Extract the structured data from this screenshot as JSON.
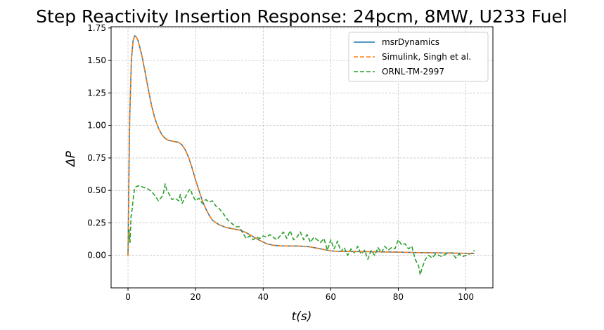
{
  "chart_data": {
    "type": "line",
    "title": "Step Reactivity Insertion Response: 24pcm, 8MW, U233 Fuel",
    "xlabel": "t(s)",
    "ylabel": "ΔP",
    "xlim": [
      -5,
      108
    ],
    "ylim": [
      -0.25,
      1.76
    ],
    "x_ticks": [
      0,
      20,
      40,
      60,
      80,
      100
    ],
    "y_ticks": [
      0.0,
      0.25,
      0.5,
      0.75,
      1.0,
      1.25,
      1.5,
      1.75
    ],
    "x_tick_labels": [
      "0",
      "20",
      "40",
      "60",
      "80",
      "100"
    ],
    "y_tick_labels": [
      "0.00",
      "0.25",
      "0.50",
      "0.75",
      "1.00",
      "1.25",
      "1.50",
      "1.75"
    ],
    "grid": true,
    "legend_position": "top-right",
    "series": [
      {
        "name": "msrDynamics",
        "color": "#1f77b4",
        "style": "solid",
        "points": [
          [
            0,
            0.0
          ],
          [
            0.2,
            0.45
          ],
          [
            0.5,
            1.05
          ],
          [
            1,
            1.5
          ],
          [
            1.5,
            1.65
          ],
          [
            2,
            1.69
          ],
          [
            2.5,
            1.68
          ],
          [
            3,
            1.65
          ],
          [
            4,
            1.55
          ],
          [
            5,
            1.42
          ],
          [
            6,
            1.28
          ],
          [
            7,
            1.15
          ],
          [
            8,
            1.05
          ],
          [
            9,
            0.98
          ],
          [
            10,
            0.93
          ],
          [
            11,
            0.9
          ],
          [
            12,
            0.885
          ],
          [
            13,
            0.88
          ],
          [
            14,
            0.875
          ],
          [
            15,
            0.87
          ],
          [
            16,
            0.85
          ],
          [
            17,
            0.81
          ],
          [
            18,
            0.75
          ],
          [
            19,
            0.67
          ],
          [
            20,
            0.58
          ],
          [
            21,
            0.5
          ],
          [
            22,
            0.42
          ],
          [
            23,
            0.36
          ],
          [
            24,
            0.31
          ],
          [
            25,
            0.27
          ],
          [
            27,
            0.235
          ],
          [
            29,
            0.215
          ],
          [
            31,
            0.205
          ],
          [
            33,
            0.195
          ],
          [
            35,
            0.175
          ],
          [
            37,
            0.145
          ],
          [
            39,
            0.115
          ],
          [
            41,
            0.09
          ],
          [
            43,
            0.078
          ],
          [
            45,
            0.073
          ],
          [
            50,
            0.072
          ],
          [
            52,
            0.07
          ],
          [
            54,
            0.065
          ],
          [
            56,
            0.055
          ],
          [
            58,
            0.045
          ],
          [
            60,
            0.035
          ],
          [
            62,
            0.031
          ],
          [
            65,
            0.03
          ],
          [
            70,
            0.029
          ],
          [
            75,
            0.027
          ],
          [
            80,
            0.025
          ],
          [
            85,
            0.022
          ],
          [
            90,
            0.02
          ],
          [
            95,
            0.018
          ],
          [
            100,
            0.016
          ],
          [
            102.5,
            0.015
          ]
        ]
      },
      {
        "name": "Simulink, Singh et al.",
        "color": "#ff7f0e",
        "style": "dashed",
        "points": [
          [
            0,
            0.0
          ],
          [
            0.2,
            0.45
          ],
          [
            0.5,
            1.05
          ],
          [
            1,
            1.5
          ],
          [
            1.5,
            1.65
          ],
          [
            2,
            1.69
          ],
          [
            2.5,
            1.68
          ],
          [
            3,
            1.65
          ],
          [
            4,
            1.55
          ],
          [
            5,
            1.42
          ],
          [
            6,
            1.28
          ],
          [
            7,
            1.15
          ],
          [
            8,
            1.05
          ],
          [
            9,
            0.98
          ],
          [
            10,
            0.93
          ],
          [
            11,
            0.9
          ],
          [
            12,
            0.885
          ],
          [
            13,
            0.88
          ],
          [
            14,
            0.875
          ],
          [
            15,
            0.87
          ],
          [
            16,
            0.85
          ],
          [
            17,
            0.81
          ],
          [
            18,
            0.75
          ],
          [
            19,
            0.67
          ],
          [
            20,
            0.58
          ],
          [
            21,
            0.5
          ],
          [
            22,
            0.42
          ],
          [
            23,
            0.36
          ],
          [
            24,
            0.31
          ],
          [
            25,
            0.27
          ],
          [
            27,
            0.235
          ],
          [
            29,
            0.215
          ],
          [
            31,
            0.205
          ],
          [
            33,
            0.195
          ],
          [
            35,
            0.175
          ],
          [
            37,
            0.145
          ],
          [
            39,
            0.115
          ],
          [
            41,
            0.09
          ],
          [
            43,
            0.078
          ],
          [
            45,
            0.073
          ],
          [
            50,
            0.072
          ],
          [
            52,
            0.07
          ],
          [
            54,
            0.065
          ],
          [
            56,
            0.055
          ],
          [
            58,
            0.045
          ],
          [
            60,
            0.035
          ],
          [
            62,
            0.031
          ],
          [
            65,
            0.03
          ],
          [
            70,
            0.029
          ],
          [
            75,
            0.027
          ],
          [
            80,
            0.025
          ],
          [
            85,
            0.022
          ],
          [
            90,
            0.02
          ],
          [
            95,
            0.018
          ],
          [
            100,
            0.016
          ],
          [
            102.5,
            0.015
          ]
        ]
      },
      {
        "name": "ORNL-TM-2997",
        "color": "#2ca02c",
        "style": "dashed",
        "points": [
          [
            0,
            0.0
          ],
          [
            0.3,
            0.2
          ],
          [
            0.6,
            0.1
          ],
          [
            0.9,
            0.3
          ],
          [
            1.2,
            0.35
          ],
          [
            1.6,
            0.45
          ],
          [
            2,
            0.52
          ],
          [
            2.5,
            0.53
          ],
          [
            3,
            0.535
          ],
          [
            4,
            0.53
          ],
          [
            5,
            0.52
          ],
          [
            6,
            0.51
          ],
          [
            7,
            0.49
          ],
          [
            8,
            0.46
          ],
          [
            9,
            0.42
          ],
          [
            10,
            0.45
          ],
          [
            10.5,
            0.48
          ],
          [
            11,
            0.55
          ],
          [
            11.5,
            0.5
          ],
          [
            12,
            0.48
          ],
          [
            13,
            0.43
          ],
          [
            14,
            0.44
          ],
          [
            15,
            0.42
          ],
          [
            15.5,
            0.47
          ],
          [
            16,
            0.4
          ],
          [
            17,
            0.45
          ],
          [
            18,
            0.5
          ],
          [
            18.5,
            0.51
          ],
          [
            19,
            0.47
          ],
          [
            20,
            0.42
          ],
          [
            21,
            0.44
          ],
          [
            22,
            0.4
          ],
          [
            23,
            0.43
          ],
          [
            24,
            0.41
          ],
          [
            25,
            0.42
          ],
          [
            26,
            0.38
          ],
          [
            27,
            0.36
          ],
          [
            28,
            0.33
          ],
          [
            29,
            0.29
          ],
          [
            30,
            0.26
          ],
          [
            31,
            0.24
          ],
          [
            32,
            0.22
          ],
          [
            33,
            0.22
          ],
          [
            34,
            0.17
          ],
          [
            35,
            0.13
          ],
          [
            36,
            0.15
          ],
          [
            37,
            0.12
          ],
          [
            38,
            0.14
          ],
          [
            39,
            0.13
          ],
          [
            40,
            0.15
          ],
          [
            41,
            0.14
          ],
          [
            42,
            0.16
          ],
          [
            43,
            0.14
          ],
          [
            44,
            0.12
          ],
          [
            45,
            0.15
          ],
          [
            46,
            0.18
          ],
          [
            47,
            0.13
          ],
          [
            48,
            0.19
          ],
          [
            49,
            0.12
          ],
          [
            50,
            0.14
          ],
          [
            51,
            0.18
          ],
          [
            52,
            0.12
          ],
          [
            53,
            0.16
          ],
          [
            54,
            0.1
          ],
          [
            55,
            0.14
          ],
          [
            56,
            0.12
          ],
          [
            57,
            0.1
          ],
          [
            58,
            0.13
          ],
          [
            59,
            0.04
          ],
          [
            60,
            0.12
          ],
          [
            61,
            0.05
          ],
          [
            62,
            0.11
          ],
          [
            63,
            0.03
          ],
          [
            64,
            0.06
          ],
          [
            65,
            0.0
          ],
          [
            66,
            0.05
          ],
          [
            67,
            0.02
          ],
          [
            68,
            0.07
          ],
          [
            69,
            0.01
          ],
          [
            70,
            0.04
          ],
          [
            71,
            -0.03
          ],
          [
            72,
            0.04
          ],
          [
            73,
            0.0
          ],
          [
            74,
            0.06
          ],
          [
            75,
            0.02
          ],
          [
            76,
            0.07
          ],
          [
            77,
            0.04
          ],
          [
            78,
            0.06
          ],
          [
            79,
            0.05
          ],
          [
            80,
            0.12
          ],
          [
            81,
            0.08
          ],
          [
            82,
            0.09
          ],
          [
            83,
            0.05
          ],
          [
            84,
            0.07
          ],
          [
            85,
            -0.03
          ],
          [
            86,
            -0.08
          ],
          [
            86.5,
            -0.15
          ],
          [
            87,
            -0.1
          ],
          [
            88,
            -0.03
          ],
          [
            89,
            0.0
          ],
          [
            90,
            -0.02
          ],
          [
            91,
            0.01
          ],
          [
            92,
            0.0
          ],
          [
            93,
            -0.01
          ],
          [
            94,
            0.01
          ],
          [
            95,
            0.02
          ],
          [
            96,
            0.02
          ],
          [
            97,
            -0.02
          ],
          [
            98,
            0.01
          ],
          [
            99,
            -0.01
          ],
          [
            100,
            0.0
          ],
          [
            101,
            0.01
          ],
          [
            102,
            0.02
          ],
          [
            102.5,
            0.04
          ]
        ]
      }
    ]
  }
}
